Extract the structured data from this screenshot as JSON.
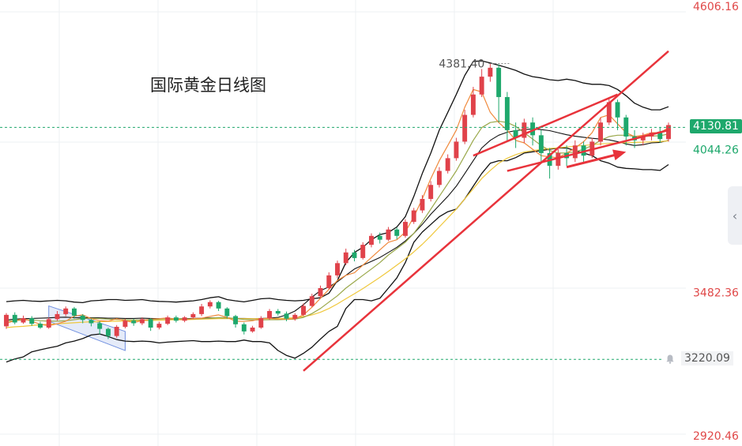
{
  "title": "国际黄金日线图",
  "chart_data": {
    "type": "candlestick",
    "title": "国际黄金日线图",
    "ylim": [
      2920.46,
      4606.16
    ],
    "y_tick_labels": [
      "4606.16",
      "4044.26",
      "3482.36",
      "2920.46"
    ],
    "y_ticks": [
      4606.16,
      4044.26,
      3482.36,
      2920.46
    ],
    "current_price": "4130.81",
    "current_price_value": 4130.81,
    "alert_price": "3220.09",
    "alert_price_value": 3220.09,
    "peak_label": "4381.40",
    "peak_value": 4381.4,
    "grid": true,
    "colors": {
      "up": "#e0424a",
      "down": "#1ea86c",
      "bollinger": "#111111",
      "ma_fast": "#f08a3c",
      "ma_mid": "#9aa84a",
      "ma_slow": "#f0c83c",
      "trendline": "#e8333b",
      "down_channel": "#6f8fe0",
      "current_price_line": "#1ea86c",
      "axis_text": "#e04848",
      "axis_text_low": "#1ea86c"
    },
    "bollinger_upper": [
      3447,
      3450,
      3452,
      3449,
      3448,
      3450,
      3452,
      3450,
      3445,
      3443,
      3450,
      3452,
      3455,
      3455,
      3452,
      3453,
      3455,
      3450,
      3448,
      3447,
      3445,
      3448,
      3450,
      3455,
      3462,
      3466,
      3455,
      3450,
      3446,
      3452,
      3458,
      3460,
      3455,
      3452,
      3450,
      3452,
      3458,
      3462,
      3480,
      3530,
      3600,
      3640,
      3660,
      3690,
      3710,
      3718,
      3740,
      3780,
      3860,
      3950,
      4030,
      4120,
      4190,
      4260,
      4335,
      4390,
      4392,
      4384,
      4375,
      4365,
      4355,
      4340,
      4330,
      4325,
      4318,
      4315,
      4320,
      4315,
      4305,
      4300,
      4300,
      4295,
      4280,
      4255,
      4226,
      4210,
      4200,
      4200,
      4212
    ],
    "bollinger_lower": [
      3210,
      3222,
      3230,
      3250,
      3258,
      3265,
      3272,
      3285,
      3292,
      3302,
      3316,
      3320,
      3310,
      3298,
      3292,
      3290,
      3292,
      3290,
      3285,
      3288,
      3290,
      3292,
      3294,
      3290,
      3290,
      3292,
      3290,
      3290,
      3296,
      3290,
      3290,
      3285,
      3255,
      3236,
      3225,
      3244,
      3268,
      3300,
      3330,
      3350,
      3420,
      3455,
      3455,
      3450,
      3460,
      3500,
      3540,
      3600,
      3680,
      3720,
      3750,
      3780,
      3800,
      3810,
      3850,
      3900,
      3950,
      3990,
      4000,
      4000,
      4012,
      4030,
      4035,
      4040,
      4045,
      4050,
      4050,
      4040,
      4030,
      4020,
      4000,
      3990,
      3975,
      3970,
      3968,
      3965,
      3965,
      3962,
      3985
    ],
    "bollinger_mid": [
      3375,
      3378,
      3380,
      3381,
      3382,
      3383,
      3385,
      3386,
      3384,
      3383,
      3384,
      3383,
      3382,
      3382,
      3381,
      3381,
      3382,
      3381,
      3380,
      3379,
      3379,
      3380,
      3381,
      3382,
      3383,
      3383,
      3382,
      3381,
      3381,
      3380,
      3381,
      3382,
      3385,
      3395,
      3410,
      3435,
      3465,
      3490,
      3505,
      3525,
      3550,
      3575,
      3590,
      3605,
      3620,
      3640,
      3660,
      3685,
      3715,
      3750,
      3790,
      3825,
      3860,
      3900,
      3950,
      4000,
      4050,
      4080,
      4100,
      4112,
      4118,
      4122,
      4125,
      4122,
      4118,
      4110,
      4102,
      4096,
      4092,
      4088,
      4085,
      4082,
      4075,
      4066,
      4060,
      4063,
      4070,
      4072,
      4080
    ],
    "ma_fast": [
      3362,
      3372,
      3380,
      3370,
      3358,
      3352,
      3360,
      3370,
      3390,
      3395,
      3380,
      3372,
      3370,
      3380,
      3372,
      3365,
      3372,
      3378,
      3380,
      3383,
      3378,
      3375,
      3380,
      3382,
      3389,
      3395,
      3385,
      3370,
      3369,
      3372,
      3380,
      3382,
      3378,
      3378,
      3380,
      3395,
      3425,
      3460,
      3495,
      3530,
      3550,
      3560,
      3590,
      3620,
      3650,
      3680,
      3690,
      3720,
      3780,
      3850,
      3930,
      4000,
      4060,
      4120,
      4210,
      4280,
      4270,
      4190,
      4150,
      4120,
      4080,
      4070,
      4045,
      4020,
      4015,
      4012,
      4030,
      4050,
      4075,
      4110,
      4170,
      4180,
      4145,
      4110,
      4095,
      4100,
      4110,
      4110,
      4130
    ],
    "ma_mid": [
      3370,
      3372,
      3375,
      3375,
      3372,
      3370,
      3370,
      3372,
      3376,
      3380,
      3382,
      3380,
      3378,
      3377,
      3376,
      3375,
      3375,
      3376,
      3378,
      3380,
      3380,
      3379,
      3379,
      3380,
      3382,
      3384,
      3384,
      3380,
      3377,
      3375,
      3375,
      3376,
      3376,
      3377,
      3378,
      3385,
      3400,
      3420,
      3445,
      3470,
      3500,
      3525,
      3550,
      3575,
      3600,
      3630,
      3655,
      3680,
      3715,
      3760,
      3810,
      3860,
      3910,
      3960,
      4020,
      4080,
      4130,
      4150,
      4155,
      4150,
      4135,
      4110,
      4085,
      4060,
      4040,
      4030,
      4030,
      4035,
      4045,
      4060,
      4080,
      4095,
      4100,
      4100,
      4096,
      4095,
      4097,
      4098,
      4105
    ],
    "ma_slow": [
      3345,
      3348,
      3350,
      3353,
      3356,
      3358,
      3360,
      3362,
      3364,
      3366,
      3368,
      3368,
      3369,
      3370,
      3371,
      3372,
      3373,
      3373,
      3374,
      3375,
      3376,
      3376,
      3377,
      3378,
      3379,
      3380,
      3380,
      3380,
      3380,
      3380,
      3380,
      3380,
      3381,
      3382,
      3384,
      3388,
      3395,
      3405,
      3420,
      3438,
      3458,
      3478,
      3498,
      3520,
      3542,
      3566,
      3590,
      3615,
      3642,
      3672,
      3705,
      3740,
      3775,
      3810,
      3850,
      3890,
      3930,
      3962,
      3990,
      4010,
      4024,
      4034,
      4040,
      4044,
      4048,
      4051,
      4054,
      4057,
      4060,
      4063,
      4066,
      4068,
      4070,
      4071,
      4072,
      4073,
      4074,
      4075,
      4078
    ],
    "candles": [
      [
        3350,
        3395,
        3340,
        3402
      ],
      [
        3395,
        3365,
        3358,
        3405
      ],
      [
        3365,
        3382,
        3360,
        3392
      ],
      [
        3382,
        3360,
        3352,
        3390
      ],
      [
        3360,
        3345,
        3340,
        3368
      ],
      [
        3345,
        3378,
        3340,
        3385
      ],
      [
        3378,
        3398,
        3372,
        3410
      ],
      [
        3398,
        3420,
        3390,
        3428
      ],
      [
        3420,
        3392,
        3380,
        3426
      ],
      [
        3392,
        3375,
        3362,
        3398
      ],
      [
        3375,
        3362,
        3350,
        3380
      ],
      [
        3362,
        3340,
        3318,
        3370
      ],
      [
        3340,
        3312,
        3300,
        3345
      ],
      [
        3312,
        3348,
        3305,
        3355
      ],
      [
        3348,
        3372,
        3342,
        3380
      ],
      [
        3372,
        3362,
        3352,
        3380
      ],
      [
        3362,
        3378,
        3355,
        3385
      ],
      [
        3378,
        3345,
        3332,
        3382
      ],
      [
        3345,
        3360,
        3338,
        3368
      ],
      [
        3360,
        3385,
        3355,
        3392
      ],
      [
        3385,
        3372,
        3365,
        3392
      ],
      [
        3372,
        3385,
        3366,
        3390
      ],
      [
        3385,
        3398,
        3380,
        3405
      ],
      [
        3398,
        3428,
        3390,
        3438
      ],
      [
        3428,
        3445,
        3420,
        3452
      ],
      [
        3445,
        3420,
        3410,
        3450
      ],
      [
        3420,
        3390,
        3380,
        3425
      ],
      [
        3390,
        3358,
        3345,
        3395
      ],
      [
        3358,
        3330,
        3318,
        3365
      ],
      [
        3330,
        3345,
        3325,
        3352
      ],
      [
        3345,
        3382,
        3340,
        3390
      ],
      [
        3382,
        3410,
        3375,
        3418
      ],
      [
        3410,
        3400,
        3392,
        3418
      ],
      [
        3400,
        3380,
        3370,
        3408
      ],
      [
        3380,
        3395,
        3372,
        3402
      ],
      [
        3395,
        3430,
        3390,
        3440
      ],
      [
        3430,
        3468,
        3425,
        3478
      ],
      [
        3468,
        3500,
        3462,
        3510
      ],
      [
        3500,
        3550,
        3495,
        3562
      ],
      [
        3550,
        3598,
        3540,
        3608
      ],
      [
        3598,
        3640,
        3590,
        3655
      ],
      [
        3640,
        3618,
        3605,
        3650
      ],
      [
        3618,
        3670,
        3612,
        3680
      ],
      [
        3670,
        3705,
        3660,
        3715
      ],
      [
        3705,
        3690,
        3675,
        3718
      ],
      [
        3690,
        3730,
        3685,
        3740
      ],
      [
        3730,
        3705,
        3692,
        3738
      ],
      [
        3705,
        3760,
        3698,
        3770
      ],
      [
        3760,
        3805,
        3752,
        3815
      ],
      [
        3805,
        3850,
        3795,
        3865
      ],
      [
        3850,
        3905,
        3840,
        3920
      ],
      [
        3905,
        3960,
        3895,
        3975
      ],
      [
        3960,
        4010,
        3950,
        4025
      ],
      [
        4010,
        4075,
        4000,
        4090
      ],
      [
        4075,
        4180,
        4065,
        4200
      ],
      [
        4180,
        4260,
        4170,
        4290
      ],
      [
        4260,
        4330,
        4250,
        4360
      ],
      [
        4330,
        4365,
        4310,
        4381
      ],
      [
        4365,
        4250,
        4150,
        4378
      ],
      [
        4250,
        4120,
        4080,
        4270
      ],
      [
        4120,
        4090,
        4050,
        4150
      ],
      [
        4090,
        4150,
        4070,
        4165
      ],
      [
        4150,
        4100,
        4060,
        4170
      ],
      [
        4100,
        4030,
        3990,
        4120
      ],
      [
        4030,
        3980,
        3930,
        4050
      ],
      [
        3980,
        4030,
        3965,
        4045
      ],
      [
        4030,
        4010,
        3980,
        4060
      ],
      [
        4010,
        4060,
        3995,
        4080
      ],
      [
        4060,
        4020,
        3990,
        4075
      ],
      [
        4020,
        4075,
        4010,
        4090
      ],
      [
        4075,
        4150,
        4060,
        4170
      ],
      [
        4150,
        4230,
        4140,
        4250
      ],
      [
        4230,
        4170,
        4120,
        4240
      ],
      [
        4170,
        4095,
        4060,
        4180
      ],
      [
        4095,
        4080,
        4050,
        4120
      ],
      [
        4080,
        4095,
        4060,
        4110
      ],
      [
        4095,
        4110,
        4080,
        4125
      ],
      [
        4110,
        4085,
        4070,
        4130
      ],
      [
        4085,
        4140,
        4075,
        4150
      ]
    ],
    "trendlines": [
      {
        "from": [
          35,
          3175
        ],
        "to": [
          78,
          4430
        ]
      },
      {
        "from": [
          59,
          3960
        ],
        "to": [
          78,
          4120
        ]
      },
      {
        "from": [
          55,
          4020
        ],
        "to": [
          72,
          4260
        ]
      }
    ],
    "arrow": {
      "from": [
        66,
        3975
      ],
      "to": [
        73,
        4035
      ]
    },
    "down_channel": {
      "upper": [
        [
          5,
          3430
        ],
        [
          14,
          3330
        ]
      ],
      "lower": [
        [
          5,
          3370
        ],
        [
          14,
          3255
        ]
      ]
    }
  }
}
